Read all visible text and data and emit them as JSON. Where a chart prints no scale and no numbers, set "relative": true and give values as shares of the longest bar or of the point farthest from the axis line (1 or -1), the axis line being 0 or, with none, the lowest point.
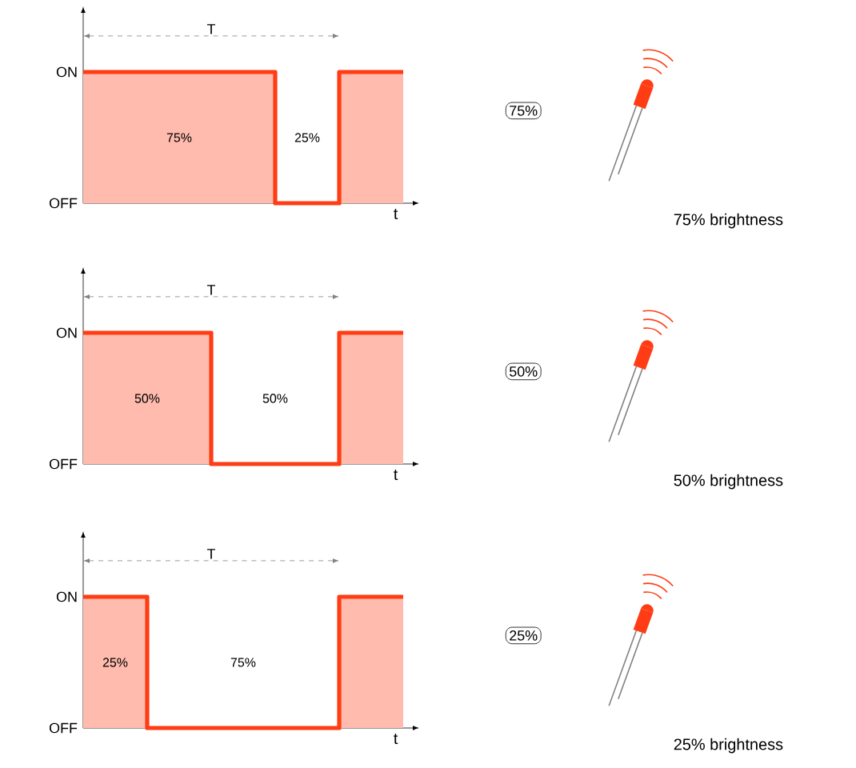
{
  "chart_data": [
    {
      "type": "step",
      "xlabel": "t",
      "categories": [
        null,
        null,
        null,
        null,
        null,
        null
      ],
      "relative": true,
      "marker": "none",
      "series": [
        {
          "color": "#ff3c14",
          "values": [
            1,
            1,
            1,
            0,
            1,
            1
          ]
        }
      ],
      "annotations": [
        "ON",
        "OFF",
        "T",
        "75%",
        "25%",
        "75%",
        "75% brightness"
      ]
    },
    {
      "type": "step",
      "xlabel": "t",
      "categories": [
        null,
        null,
        null,
        null,
        null,
        null
      ],
      "relative": true,
      "marker": "none",
      "series": [
        {
          "color": "#ff3c14",
          "values": [
            1,
            1,
            0,
            0,
            1,
            1
          ]
        }
      ],
      "annotations": [
        "ON",
        "OFF",
        "T",
        "50%",
        "50%",
        "50%",
        "50% brightness"
      ]
    },
    {
      "type": "step",
      "xlabel": "t",
      "categories": [
        null,
        null,
        null,
        null,
        null,
        null
      ],
      "relative": true,
      "marker": "none",
      "series": [
        {
          "color": "#ff3c14",
          "values": [
            1,
            0,
            0,
            0,
            1,
            1
          ]
        }
      ],
      "annotations": [
        "ON",
        "OFF",
        "T",
        "25%",
        "75%",
        "25%",
        "25% brightness"
      ]
    }
  ]
}
